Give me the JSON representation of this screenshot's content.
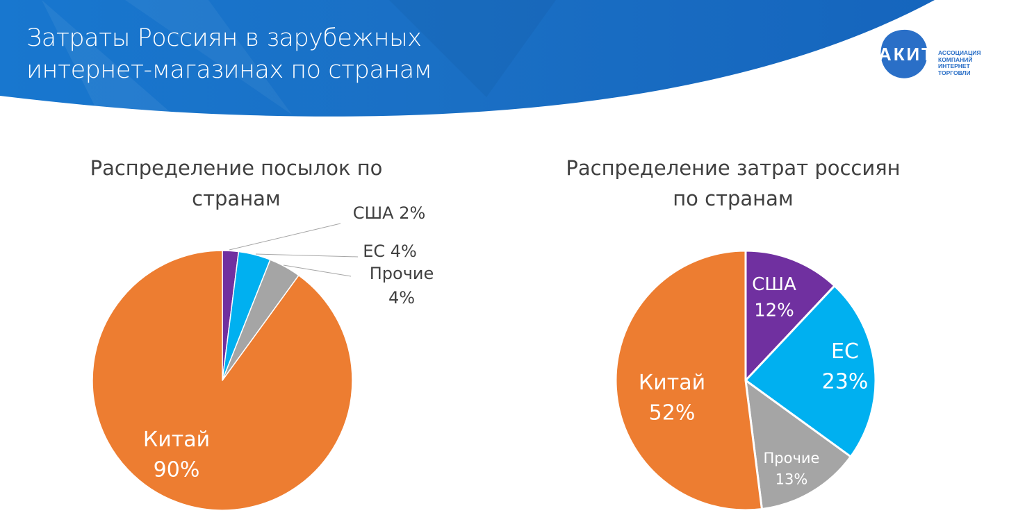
{
  "slide": {
    "title_line1": "Затраты Россиян в зарубежных",
    "title_line2": "интернет-магазинах по странам",
    "logo": {
      "mark": "АКИТ",
      "text": [
        "АССОЦИАЦИЯ",
        "КОМПАНИЙ",
        "ИНТЕРНЕТ",
        "ТОРГОВЛИ"
      ]
    },
    "banner_color": "#1a6fc4"
  },
  "chart_data": [
    {
      "type": "pie",
      "title_line1": "Распределение посылок по",
      "title_line2": "странам",
      "start": "12 o'clock, clockwise",
      "slices": [
        {
          "label": "США",
          "value": 2,
          "value_label": "2%",
          "color": "#7030A0"
        },
        {
          "label": "ЕС",
          "value": 4,
          "value_label": "4%",
          "color": "#00B0F0"
        },
        {
          "label": "Прочие",
          "value": 4,
          "value_label": "4%",
          "color": "#A5A5A5"
        },
        {
          "label": "Китай",
          "value": 90,
          "value_label": "90%",
          "color": "#ED7D31"
        }
      ]
    },
    {
      "type": "pie",
      "title_line1": "Распределение  затрат россиян",
      "title_line2": "по странам",
      "start": "12 o'clock, clockwise",
      "slices": [
        {
          "label": "США",
          "value": 12,
          "value_label": "12%",
          "color": "#7030A0"
        },
        {
          "label": "ЕС",
          "value": 23,
          "value_label": "23%",
          "color": "#00B0F0"
        },
        {
          "label": "Прочие",
          "value": 13,
          "value_label": "13%",
          "color": "#A5A5A5"
        },
        {
          "label": "Китай",
          "value": 52,
          "value_label": "52%",
          "color": "#ED7D31"
        }
      ]
    }
  ]
}
